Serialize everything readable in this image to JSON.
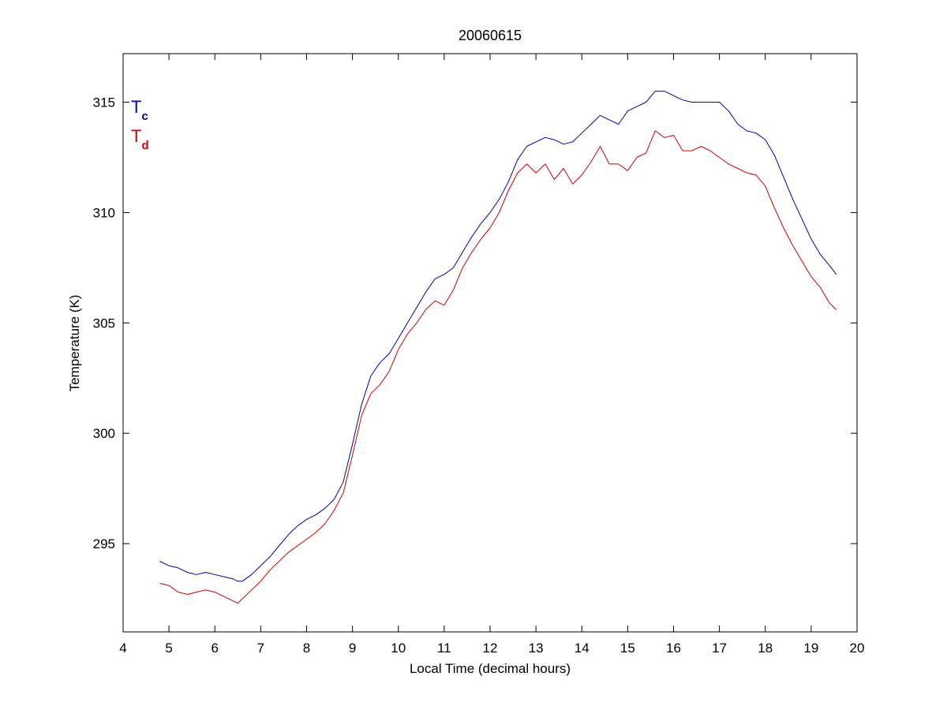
{
  "chart_data": {
    "type": "line",
    "title": "20060615",
    "xlabel": "Local Time (decimal hours)",
    "ylabel": "Temperature (K)",
    "xlim": [
      4,
      20
    ],
    "ylim": [
      291,
      317.2
    ],
    "xticks": [
      4,
      5,
      6,
      7,
      8,
      9,
      10,
      11,
      12,
      13,
      14,
      15,
      16,
      17,
      18,
      19,
      20
    ],
    "yticks": [
      295,
      300,
      305,
      310,
      315
    ],
    "grid": false,
    "legend_position": "top-left",
    "series": [
      {
        "name_main": "T",
        "name_sub": "c",
        "color": "#0000aa",
        "x": [
          4.8,
          5.0,
          5.2,
          5.4,
          5.6,
          5.8,
          6.0,
          6.2,
          6.4,
          6.5,
          6.6,
          6.8,
          7.0,
          7.2,
          7.4,
          7.6,
          7.8,
          8.0,
          8.2,
          8.4,
          8.6,
          8.8,
          9.0,
          9.2,
          9.4,
          9.6,
          9.8,
          10.0,
          10.2,
          10.4,
          10.6,
          10.8,
          11.0,
          11.2,
          11.4,
          11.6,
          11.8,
          12.0,
          12.2,
          12.4,
          12.6,
          12.8,
          13.0,
          13.2,
          13.4,
          13.6,
          13.8,
          14.0,
          14.2,
          14.4,
          14.6,
          14.8,
          15.0,
          15.2,
          15.4,
          15.6,
          15.8,
          16.0,
          16.2,
          16.4,
          16.6,
          16.8,
          17.0,
          17.2,
          17.4,
          17.6,
          17.8,
          18.0,
          18.2,
          18.4,
          18.6,
          18.8,
          19.0,
          19.2,
          19.4,
          19.55
        ],
        "y": [
          294.2,
          294.0,
          293.9,
          293.7,
          293.6,
          293.7,
          293.6,
          293.5,
          293.4,
          293.3,
          293.3,
          293.6,
          294.0,
          294.4,
          294.9,
          295.4,
          295.8,
          296.1,
          296.3,
          296.6,
          297.0,
          297.8,
          299.5,
          301.3,
          302.6,
          303.2,
          303.6,
          304.3,
          305.0,
          305.7,
          306.4,
          307.0,
          307.2,
          307.5,
          308.2,
          308.9,
          309.5,
          310.0,
          310.6,
          311.4,
          312.4,
          313.0,
          313.2,
          313.4,
          313.3,
          313.1,
          313.2,
          313.6,
          314.0,
          314.4,
          314.2,
          314.0,
          314.6,
          314.8,
          315.0,
          315.5,
          315.5,
          315.3,
          315.1,
          315.0,
          315.0,
          315.0,
          315.0,
          314.6,
          314.0,
          313.7,
          313.6,
          313.3,
          312.6,
          311.6,
          310.6,
          309.7,
          308.8,
          308.1,
          307.6,
          307.2
        ]
      },
      {
        "name_main": "T",
        "name_sub": "d",
        "color": "#cc0000",
        "x": [
          4.8,
          5.0,
          5.2,
          5.4,
          5.6,
          5.8,
          6.0,
          6.2,
          6.4,
          6.5,
          6.6,
          6.8,
          7.0,
          7.2,
          7.4,
          7.6,
          7.8,
          8.0,
          8.2,
          8.4,
          8.6,
          8.8,
          9.0,
          9.2,
          9.4,
          9.6,
          9.8,
          10.0,
          10.2,
          10.4,
          10.6,
          10.8,
          11.0,
          11.2,
          11.4,
          11.6,
          11.8,
          12.0,
          12.2,
          12.4,
          12.6,
          12.8,
          13.0,
          13.2,
          13.4,
          13.6,
          13.8,
          14.0,
          14.2,
          14.4,
          14.6,
          14.8,
          15.0,
          15.2,
          15.4,
          15.6,
          15.8,
          16.0,
          16.2,
          16.4,
          16.6,
          16.8,
          17.0,
          17.2,
          17.4,
          17.6,
          17.8,
          18.0,
          18.2,
          18.4,
          18.6,
          18.8,
          19.0,
          19.2,
          19.4,
          19.55
        ],
        "y": [
          293.2,
          293.1,
          292.8,
          292.7,
          292.8,
          292.9,
          292.8,
          292.6,
          292.4,
          292.3,
          292.5,
          292.9,
          293.3,
          293.8,
          294.2,
          294.6,
          294.9,
          295.2,
          295.5,
          295.9,
          296.5,
          297.3,
          299.0,
          300.8,
          301.8,
          302.2,
          302.8,
          303.8,
          304.5,
          305.0,
          305.6,
          306.0,
          305.8,
          306.5,
          307.5,
          308.2,
          308.8,
          309.3,
          310.0,
          311.0,
          311.8,
          312.2,
          311.8,
          312.2,
          311.5,
          312.0,
          311.3,
          311.7,
          312.3,
          313.0,
          312.2,
          312.2,
          311.9,
          312.5,
          312.7,
          313.7,
          313.4,
          313.5,
          312.8,
          312.8,
          313.0,
          312.8,
          312.5,
          312.2,
          312.0,
          311.8,
          311.7,
          311.2,
          310.2,
          309.3,
          308.5,
          307.8,
          307.1,
          306.6,
          305.9,
          305.6
        ]
      }
    ]
  }
}
